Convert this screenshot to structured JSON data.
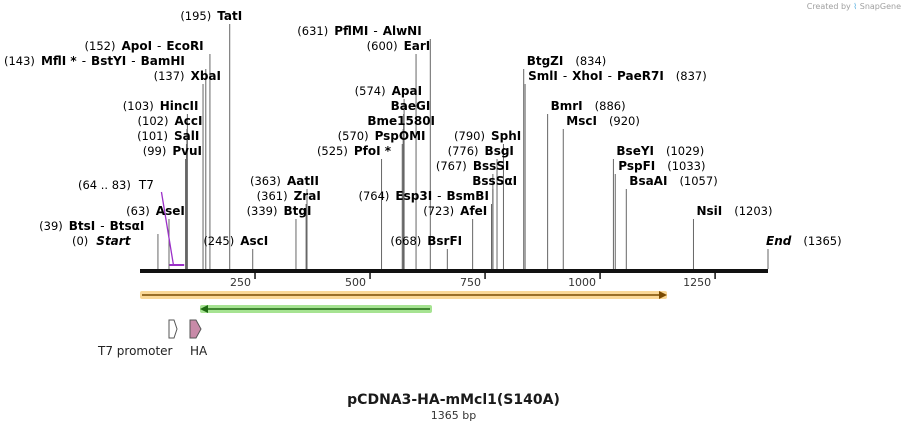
{
  "credit": {
    "text": "Created by",
    "brand": "SnapGene"
  },
  "plasmid": {
    "name": "pCDNA3-HA-mMcl1(S140A)",
    "length_label": "1365 bp",
    "length": 1365
  },
  "colors": {
    "enzyme_line": "#666666",
    "primer": "#9b30c8",
    "orange_bar": "#f5b842",
    "green_bar": "#6ad04a",
    "ha": "#c88aa8"
  },
  "axis": {
    "ticks": [
      250,
      500,
      750,
      1000,
      1250
    ]
  },
  "start_label": {
    "pos": "(0)",
    "name": "Start"
  },
  "end_label": {
    "name": "End",
    "pos": "(1365)"
  },
  "sites": [
    {
      "pos": "(39)",
      "parts": [
        "BtsI",
        "-",
        "BtsαI"
      ],
      "bp": 39,
      "row": 0
    },
    {
      "pos": "(63)",
      "parts": [
        "AseI"
      ],
      "bp": 63,
      "row": 1
    },
    {
      "pos": "(99)",
      "parts": [
        "PvuI"
      ],
      "bp": 99,
      "row": 5
    },
    {
      "pos": "(101)",
      "parts": [
        "SalI"
      ],
      "bp": 101,
      "row": 6
    },
    {
      "pos": "(102)",
      "parts": [
        "AccI"
      ],
      "bp": 102,
      "row": 7
    },
    {
      "pos": "(103)",
      "parts": [
        "HincII"
      ],
      "bp": 103,
      "row": 8
    },
    {
      "pos": "(137)",
      "parts": [
        "XbaI"
      ],
      "bp": 137,
      "row": 10
    },
    {
      "pos": "(143)",
      "parts": [
        "MflI *",
        "-",
        "BstYI",
        "-",
        "BamHI"
      ],
      "bp": 143,
      "row": 11
    },
    {
      "pos": "(152)",
      "parts": [
        "ApoI",
        "-",
        "EcoRI"
      ],
      "bp": 152,
      "row": 12
    },
    {
      "pos": "(195)",
      "parts": [
        "TatI"
      ],
      "bp": 195,
      "row": 14
    },
    {
      "pos": "(245)",
      "parts": [
        "AscI"
      ],
      "bp": 245,
      "row": -1
    },
    {
      "pos": "(339)",
      "parts": [
        "BtgI"
      ],
      "bp": 339,
      "row": 1
    },
    {
      "pos": "(361)",
      "parts": [
        "ZraI"
      ],
      "bp": 361,
      "row": 2
    },
    {
      "pos": "(363)",
      "parts": [
        "AatII"
      ],
      "bp": 363,
      "row": 3
    },
    {
      "pos": "(525)",
      "parts": [
        "PfoI *"
      ],
      "bp": 525,
      "row": 5
    },
    {
      "pos": "(570)",
      "parts": [
        "PspOMI"
      ],
      "bp": 570,
      "row": 6
    },
    {
      "pos": "",
      "parts": [
        "Bme1580I"
      ],
      "bp": 572,
      "row": 7
    },
    {
      "pos": "",
      "parts": [
        "BaeGI"
      ],
      "bp": 573,
      "row": 8
    },
    {
      "pos": "(574)",
      "parts": [
        "ApaI"
      ],
      "bp": 574,
      "row": 9
    },
    {
      "pos": "(600)",
      "parts": [
        "EarI"
      ],
      "bp": 600,
      "row": 12
    },
    {
      "pos": "(631)",
      "parts": [
        "PflMI",
        "-",
        "AlwNI"
      ],
      "bp": 631,
      "row": 13
    },
    {
      "pos": "(668)",
      "parts": [
        "BsrFI"
      ],
      "bp": 668,
      "row": -1
    },
    {
      "pos": "(723)",
      "parts": [
        "AfeI"
      ],
      "bp": 723,
      "row": 1
    },
    {
      "pos": "(764)",
      "parts": [
        "Esp3I",
        "-",
        "BsmBI"
      ],
      "bp": 764,
      "row": 2
    },
    {
      "pos": "",
      "parts": [
        "BssSαI"
      ],
      "bp": 767,
      "row": 3
    },
    {
      "pos": "(767)",
      "parts": [
        "BssSI"
      ],
      "bp": 767,
      "row": 4
    },
    {
      "pos": "(776)",
      "parts": [
        "BsgI"
      ],
      "bp": 776,
      "row": 5
    },
    {
      "pos": "(790)",
      "parts": [
        "SphI"
      ],
      "bp": 790,
      "row": 6
    },
    {
      "pos": "(834)",
      "parts": [
        "BtgZI"
      ],
      "bp": 834,
      "row": 11,
      "pos_after": true
    },
    {
      "pos": "(837)",
      "parts": [
        "SmlI",
        "-",
        "XhoI",
        "-",
        "PaeR7I"
      ],
      "bp": 837,
      "row": 10,
      "pos_after": true
    },
    {
      "pos": "(886)",
      "parts": [
        "BmrI"
      ],
      "bp": 886,
      "row": 8,
      "pos_after": true
    },
    {
      "pos": "(920)",
      "parts": [
        "MscI"
      ],
      "bp": 920,
      "row": 7,
      "pos_after": true
    },
    {
      "pos": "(1029)",
      "parts": [
        "BseYI"
      ],
      "bp": 1029,
      "row": 5,
      "pos_after": true
    },
    {
      "pos": "(1033)",
      "parts": [
        "PspFI"
      ],
      "bp": 1033,
      "row": 4,
      "pos_after": true
    },
    {
      "pos": "(1057)",
      "parts": [
        "BsaAI"
      ],
      "bp": 1057,
      "row": 3,
      "pos_after": true
    },
    {
      "pos": "(1203)",
      "parts": [
        "NsiI"
      ],
      "bp": 1203,
      "row": 1,
      "pos_after": true
    }
  ],
  "primer": {
    "pos": "(64 .. 83)",
    "name": "T7",
    "start": 64,
    "end": 83
  },
  "features": [
    {
      "name": "T7 promoter",
      "kind": "promoter"
    },
    {
      "name": "HA",
      "kind": "tag"
    }
  ]
}
